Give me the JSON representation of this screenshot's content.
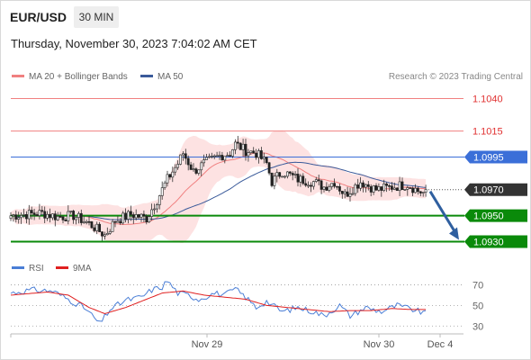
{
  "header": {
    "symbol": "EUR/USD",
    "timeframe": "30 MIN",
    "datetime": "Thursday, November 30, 2023 7:04:02 AM CET"
  },
  "legend": {
    "ma20": "MA 20 + Bollinger Bands",
    "ma50": "MA 50",
    "copyright": "Research © 2023 Trading Central",
    "rsi": "RSI",
    "ma9": "9MA"
  },
  "colors": {
    "ma20": "#f08080",
    "ma50": "#3a5a9a",
    "bollinger_fill": "#fde2e2",
    "support": "#0a8a0a",
    "pivot": "#3b6fd8",
    "resistance": "#f08080",
    "current": "#333333",
    "arrow": "#2f5f9f",
    "rsi": "#4a7ed6",
    "rsi_ma": "#e02020"
  },
  "chart_data": [
    {
      "type": "candlestick",
      "title": "",
      "timeframe": "30 MIN",
      "x_tick_labels": [
        "Nov 29",
        "Nov 30",
        "Dec 4"
      ],
      "ylim": [
        1.092,
        1.105
      ],
      "overlays": [
        "MA 20 + Bollinger Bands",
        "MA 50"
      ],
      "close_path": [
        [
          0,
          1.095
        ],
        [
          6,
          1.0951
        ],
        [
          12,
          1.0952
        ],
        [
          18,
          1.0949
        ],
        [
          24,
          1.095
        ],
        [
          30,
          1.0944
        ],
        [
          36,
          1.0935
        ],
        [
          40,
          1.0946
        ],
        [
          46,
          1.0951
        ],
        [
          52,
          1.0948
        ],
        [
          56,
          1.0962
        ],
        [
          60,
          1.0978
        ],
        [
          64,
          1.099
        ],
        [
          66,
          1.0998
        ],
        [
          70,
          1.0984
        ],
        [
          74,
          1.099
        ],
        [
          80,
          1.0996
        ],
        [
          84,
          1.0998
        ],
        [
          86,
          1.1005
        ],
        [
          90,
          1.1
        ],
        [
          94,
          1.0998
        ],
        [
          98,
          1.099
        ],
        [
          100,
          1.0976
        ],
        [
          104,
          1.0984
        ],
        [
          110,
          1.0978
        ],
        [
          116,
          1.0976
        ],
        [
          120,
          1.0972
        ],
        [
          124,
          1.0976
        ],
        [
          128,
          1.0966
        ],
        [
          134,
          1.0976
        ],
        [
          140,
          1.097
        ],
        [
          146,
          1.0972
        ],
        [
          152,
          1.0974
        ],
        [
          156,
          1.0969
        ],
        [
          159,
          1.0967
        ]
      ],
      "levels": [
        {
          "label": "1.1040",
          "value": 1.104,
          "kind": "resistance"
        },
        {
          "label": "1.1015",
          "value": 1.1015,
          "kind": "resistance"
        },
        {
          "label": "1.0995",
          "value": 1.0995,
          "kind": "pivot"
        },
        {
          "label": "1.0970",
          "value": 1.097,
          "kind": "current"
        },
        {
          "label": "1.0950",
          "value": 1.095,
          "kind": "support"
        },
        {
          "label": "1.0930",
          "value": 1.093,
          "kind": "support"
        }
      ],
      "projection": {
        "from": 1.097,
        "to": 1.093
      }
    },
    {
      "type": "line",
      "title": "",
      "series_names": [
        "RSI",
        "9MA"
      ],
      "ylim": [
        25,
        80
      ],
      "y_ticks": [
        70,
        50,
        30
      ],
      "rsi_path": [
        [
          0,
          62
        ],
        [
          8,
          65
        ],
        [
          16,
          64
        ],
        [
          22,
          56
        ],
        [
          28,
          48
        ],
        [
          32,
          38
        ],
        [
          34,
          32
        ],
        [
          38,
          46
        ],
        [
          44,
          55
        ],
        [
          50,
          58
        ],
        [
          54,
          65
        ],
        [
          58,
          68
        ],
        [
          60,
          74
        ],
        [
          64,
          62
        ],
        [
          68,
          60
        ],
        [
          72,
          56
        ],
        [
          78,
          62
        ],
        [
          82,
          60
        ],
        [
          86,
          66
        ],
        [
          90,
          58
        ],
        [
          94,
          48
        ],
        [
          98,
          54
        ],
        [
          104,
          44
        ],
        [
          110,
          48
        ],
        [
          116,
          44
        ],
        [
          120,
          40
        ],
        [
          126,
          50
        ],
        [
          130,
          40
        ],
        [
          136,
          48
        ],
        [
          142,
          44
        ],
        [
          148,
          50
        ],
        [
          154,
          46
        ],
        [
          159,
          42
        ]
      ],
      "ma9_path": [
        [
          0,
          60
        ],
        [
          14,
          63
        ],
        [
          22,
          60
        ],
        [
          30,
          48
        ],
        [
          36,
          42
        ],
        [
          44,
          48
        ],
        [
          52,
          56
        ],
        [
          58,
          62
        ],
        [
          66,
          64
        ],
        [
          74,
          60
        ],
        [
          82,
          58
        ],
        [
          90,
          56
        ],
        [
          98,
          50
        ],
        [
          106,
          48
        ],
        [
          114,
          46
        ],
        [
          122,
          44
        ],
        [
          130,
          45
        ],
        [
          138,
          45
        ],
        [
          146,
          47
        ],
        [
          154,
          46
        ],
        [
          159,
          46
        ]
      ]
    }
  ]
}
